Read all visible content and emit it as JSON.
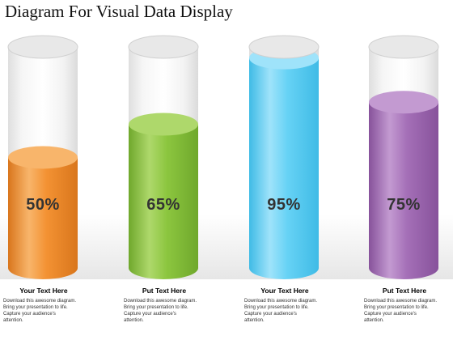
{
  "title": "Diagram For Visual Data Display",
  "cylinders": [
    {
      "percent_label": "50%",
      "fill_fraction": 0.5,
      "color": "#f39233",
      "light": "#f8b56b",
      "dark": "#d9761c",
      "caption_title": "Your Text Here",
      "caption_color": "#e98a2b",
      "caption_body": "Download this awesome diagram.\nBring  your presentation  to life.\nCapture your audience's\nattention."
    },
    {
      "percent_label": "65%",
      "fill_fraction": 0.65,
      "color": "#8cc63f",
      "light": "#aed86b",
      "dark": "#6fa82c",
      "caption_title": "Put Text Here",
      "caption_color": "#7aa930",
      "caption_body": "Download this awesome diagram.\nBring  your presentation  to life.\nCapture your audience's\nattention."
    },
    {
      "percent_label": "95%",
      "fill_fraction": 0.95,
      "color": "#66d2f5",
      "light": "#9fe3fa",
      "dark": "#3fbbe6",
      "caption_title": "Your Text Here",
      "caption_color": "#2aa6d6",
      "caption_body": "Download this awesome diagram.\nBring  your presentation  to life.\nCapture your audience's\nattention."
    },
    {
      "percent_label": "75%",
      "fill_fraction": 0.75,
      "color": "#a46fb7",
      "light": "#c39ad1",
      "dark": "#87529b",
      "caption_title": "Put Text Here",
      "caption_color": "#8c56a0",
      "caption_body": "Download this awesome diagram.\nBring  your presentation  to life.\nCapture your audience's\nattention."
    }
  ]
}
